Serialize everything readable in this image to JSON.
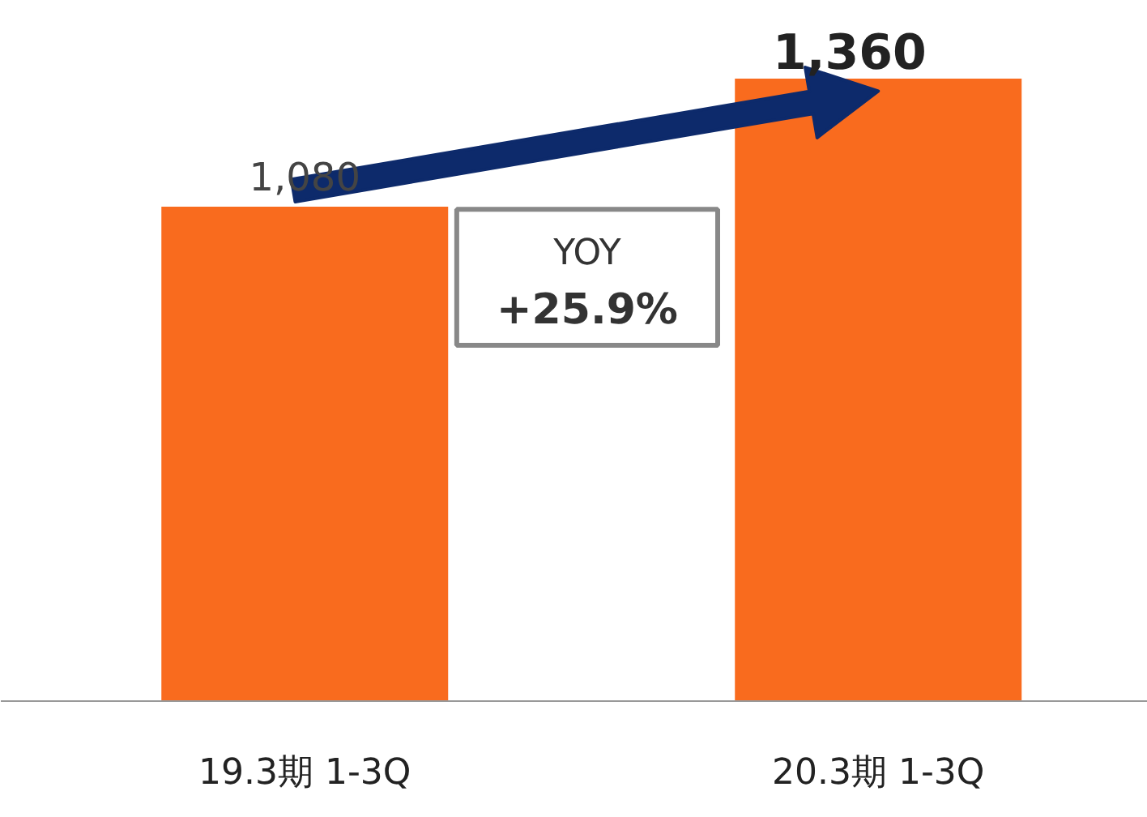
{
  "chart_data": {
    "type": "bar",
    "categories": [
      "19.3期 1-3Q",
      "20.3期 1-3Q"
    ],
    "values": [
      1080,
      1360
    ],
    "value_labels": [
      "1,080",
      "1,360"
    ],
    "color": "#f96b1e",
    "annotations": [
      "YOY",
      "+25.9%"
    ],
    "tick_labels": "x"
  }
}
